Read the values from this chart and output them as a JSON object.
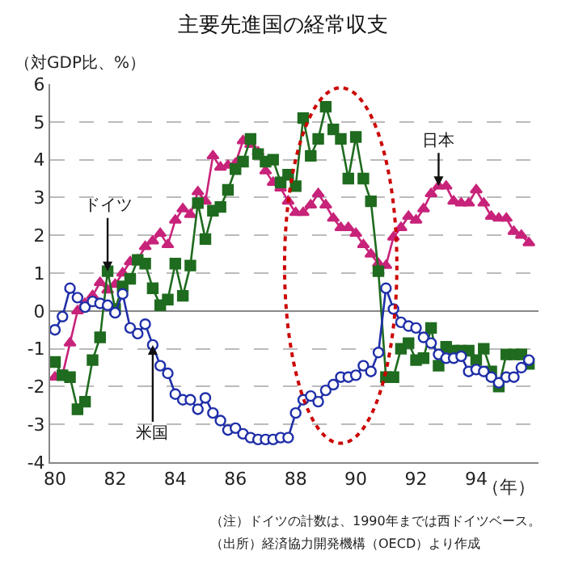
{
  "chart_data": {
    "type": "line",
    "title": "主要先進国の経常収支",
    "ylabel": "（対GDP比、%）",
    "xlabel": "（年）",
    "x": [
      1980.0,
      1980.25,
      1980.5,
      1980.75,
      1981.0,
      1981.25,
      1981.5,
      1981.75,
      1982.0,
      1982.25,
      1982.5,
      1982.75,
      1983.0,
      1983.25,
      1983.5,
      1983.75,
      1984.0,
      1984.25,
      1984.5,
      1984.75,
      1985.0,
      1985.25,
      1985.5,
      1985.75,
      1986.0,
      1986.25,
      1986.5,
      1986.75,
      1987.0,
      1987.25,
      1987.5,
      1987.75,
      1988.0,
      1988.25,
      1988.5,
      1988.75,
      1989.0,
      1989.25,
      1989.5,
      1989.75,
      1990.0,
      1990.25,
      1990.5,
      1990.75,
      1991.0,
      1991.25,
      1991.5,
      1991.75,
      1992.0,
      1992.25,
      1992.5,
      1992.75,
      1993.0,
      1993.25,
      1993.5,
      1993.75,
      1994.0,
      1994.25,
      1994.5,
      1994.75,
      1995.0,
      1995.25,
      1995.5,
      1995.75
    ],
    "series": [
      {
        "color": "#c8237a",
        "marker": "triangle",
        "values": [
          -1.75,
          -1.7,
          -0.85,
          0.0,
          0.2,
          0.4,
          0.75,
          0.55,
          0.7,
          1.0,
          1.3,
          1.35,
          1.7,
          1.85,
          2.05,
          1.75,
          2.4,
          2.7,
          2.55,
          3.15,
          2.9,
          4.1,
          3.8,
          3.85,
          3.9,
          4.5,
          4.4,
          4.2,
          3.7,
          3.4,
          3.25,
          2.9,
          2.6,
          2.6,
          2.8,
          3.1,
          2.8,
          2.45,
          2.2,
          2.2,
          2.05,
          1.75,
          1.5,
          1.25,
          1.2,
          1.95,
          2.2,
          2.5,
          2.4,
          2.7,
          3.1,
          3.3,
          3.3,
          2.9,
          2.85,
          2.85,
          3.2,
          2.85,
          2.5,
          2.45,
          2.45,
          2.1,
          2.0,
          1.8
        ]
      },
      {
        "color": "#1f6b1f",
        "marker": "square",
        "values": [
          -1.35,
          -1.7,
          -1.75,
          -2.6,
          -2.4,
          -1.3,
          -0.7,
          1.05,
          0.05,
          0.65,
          0.85,
          1.35,
          1.25,
          0.6,
          0.15,
          0.3,
          1.25,
          0.4,
          1.2,
          2.85,
          1.9,
          2.65,
          2.75,
          3.2,
          3.75,
          3.95,
          4.55,
          4.15,
          3.95,
          4.0,
          3.4,
          3.6,
          3.3,
          5.1,
          4.1,
          4.55,
          5.4,
          4.8,
          4.55,
          3.5,
          4.6,
          3.5,
          2.9,
          1.05,
          -1.75,
          -1.75,
          -1.0,
          -0.85,
          -1.3,
          -1.25,
          -0.45,
          -1.45,
          -0.95,
          -1.05,
          -1.05,
          -1.05,
          -1.3,
          -1.0,
          -1.6,
          -2.0,
          -1.15,
          -1.15,
          -1.15,
          -1.4
        ]
      },
      {
        "color": "#1f2fa8",
        "marker": "circle",
        "values": [
          -0.5,
          -0.15,
          0.6,
          0.35,
          0.1,
          0.25,
          0.2,
          0.15,
          -0.05,
          0.45,
          -0.45,
          -0.6,
          -0.35,
          -0.9,
          -1.45,
          -1.65,
          -2.2,
          -2.35,
          -2.35,
          -2.6,
          -2.3,
          -2.7,
          -2.9,
          -3.15,
          -3.1,
          -3.25,
          -3.35,
          -3.4,
          -3.4,
          -3.4,
          -3.35,
          -3.35,
          -2.7,
          -2.35,
          -2.25,
          -2.4,
          -2.1,
          -1.95,
          -1.75,
          -1.75,
          -1.7,
          -1.45,
          -1.6,
          -1.1,
          0.6,
          0.05,
          -0.3,
          -0.4,
          -0.45,
          -0.7,
          -0.85,
          -1.15,
          -1.25,
          -1.25,
          -1.2,
          -1.6,
          -1.55,
          -1.6,
          -1.75,
          -1.9,
          -1.75,
          -1.75,
          -1.5,
          -1.3
        ]
      }
    ],
    "xlim": [
      1979.84,
      1996.07
    ],
    "xticks": [
      {
        "value": 1980,
        "label": "80"
      },
      {
        "value": 1982,
        "label": "82"
      },
      {
        "value": 1984,
        "label": "84"
      },
      {
        "value": 1986,
        "label": "86"
      },
      {
        "value": 1988,
        "label": "88"
      },
      {
        "value": 1990,
        "label": "90"
      },
      {
        "value": 1992,
        "label": "92"
      },
      {
        "value": 1994,
        "label": "94"
      }
    ],
    "ylim": [
      -4,
      6
    ],
    "yticks": [
      -4,
      -3,
      -2,
      -1,
      0,
      1,
      2,
      3,
      4,
      5,
      6
    ],
    "grid": "y",
    "annotations": [
      {
        "text": "ドイツ",
        "x": 1981.75,
        "y": 1.05
      },
      {
        "text": "米国",
        "x": 1983.25,
        "y": -0.9
      },
      {
        "text": "日本",
        "x": 1992.75,
        "y": 3.3
      },
      "（注）ドイツの計数は、1990年までは西ドイツベース。",
      "（出所）経済協力開発機構（OECD）より作成"
    ]
  }
}
